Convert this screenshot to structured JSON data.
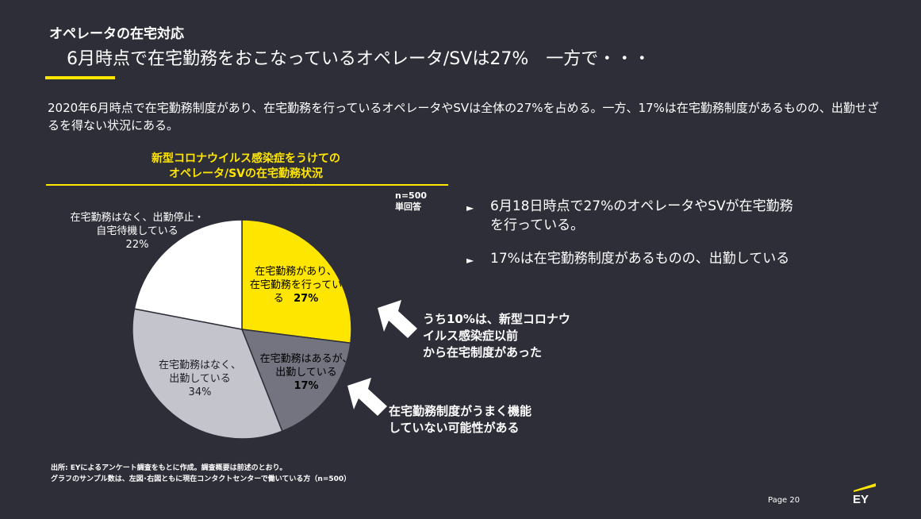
{
  "header": {
    "section": "オペレータの在宅対応",
    "headline": "6月時点で在宅勤務をおこなっているオペレータ/SVは27%　一方で・・・"
  },
  "summary": "2020年6月時点で在宅勤務制度があり、在宅勤務を行っているオペレータやSVは全体の27%を占める。一方、17%は在宅勤務制度があるものの、出勤せざるを得ない状況にある。",
  "chart": {
    "title_line1": "新型コロナウイルス感染症をうけての",
    "title_line2": "オペレータ/SVの在宅勤務状況",
    "sample_line1": "n=500",
    "sample_line2": "単回答"
  },
  "chart_data": {
    "type": "pie",
    "start_angle_deg": 0,
    "direction": "clockwise",
    "slices": [
      {
        "label_line1": "在宅勤務があり、",
        "label_line2": "在宅勤務を行ってい",
        "label_line3": "る",
        "value_text": "27%",
        "value": 27,
        "color": "#ffe600"
      },
      {
        "label_line1": "在宅勤務はあるが、",
        "label_line2": "出勤している",
        "value_text": "17%",
        "value": 17,
        "color": "#747480"
      },
      {
        "label_line1": "在宅勤務はなく、",
        "label_line2": "出勤している",
        "value_text": "34%",
        "value": 34,
        "color": "#c4c4cd"
      },
      {
        "label_line1": "在宅勤務はなく、出勤停止・",
        "label_line2": "自宅待機している",
        "value_text": "22%",
        "value": 22,
        "color": "#ffffff"
      }
    ]
  },
  "bullets": [
    {
      "line1": "6月18日時点で27%のオペレータやSVが在宅勤務",
      "line2": "を行っている。"
    },
    {
      "line1": "17%は在宅勤務制度があるものの、出勤している",
      "line2": ""
    }
  ],
  "notes": {
    "note1_line1": "うち10%は、新型コロナウ",
    "note1_line2": "イルス感染症以前",
    "note1_line3": "から在宅制度があった",
    "note2_line1": "在宅勤務制度がうまく機能",
    "note2_line2": "していない可能性がある"
  },
  "footer": {
    "source_line1": "出所:  EYによるアンケート調査をもとに作成。調査概要は前述のとおり。",
    "source_line2": "グラフのサンプル数は、左図･右図ともに現在コンタクトセンターで働いている方（n=500）",
    "page": "Page 20",
    "logo_text": "EY"
  },
  "colors": {
    "accent": "#ffe600",
    "background": "#2e2e38"
  },
  "icons": {
    "bullet": "triangle-bullet-icon",
    "arrow": "pointer-arrow-icon"
  }
}
